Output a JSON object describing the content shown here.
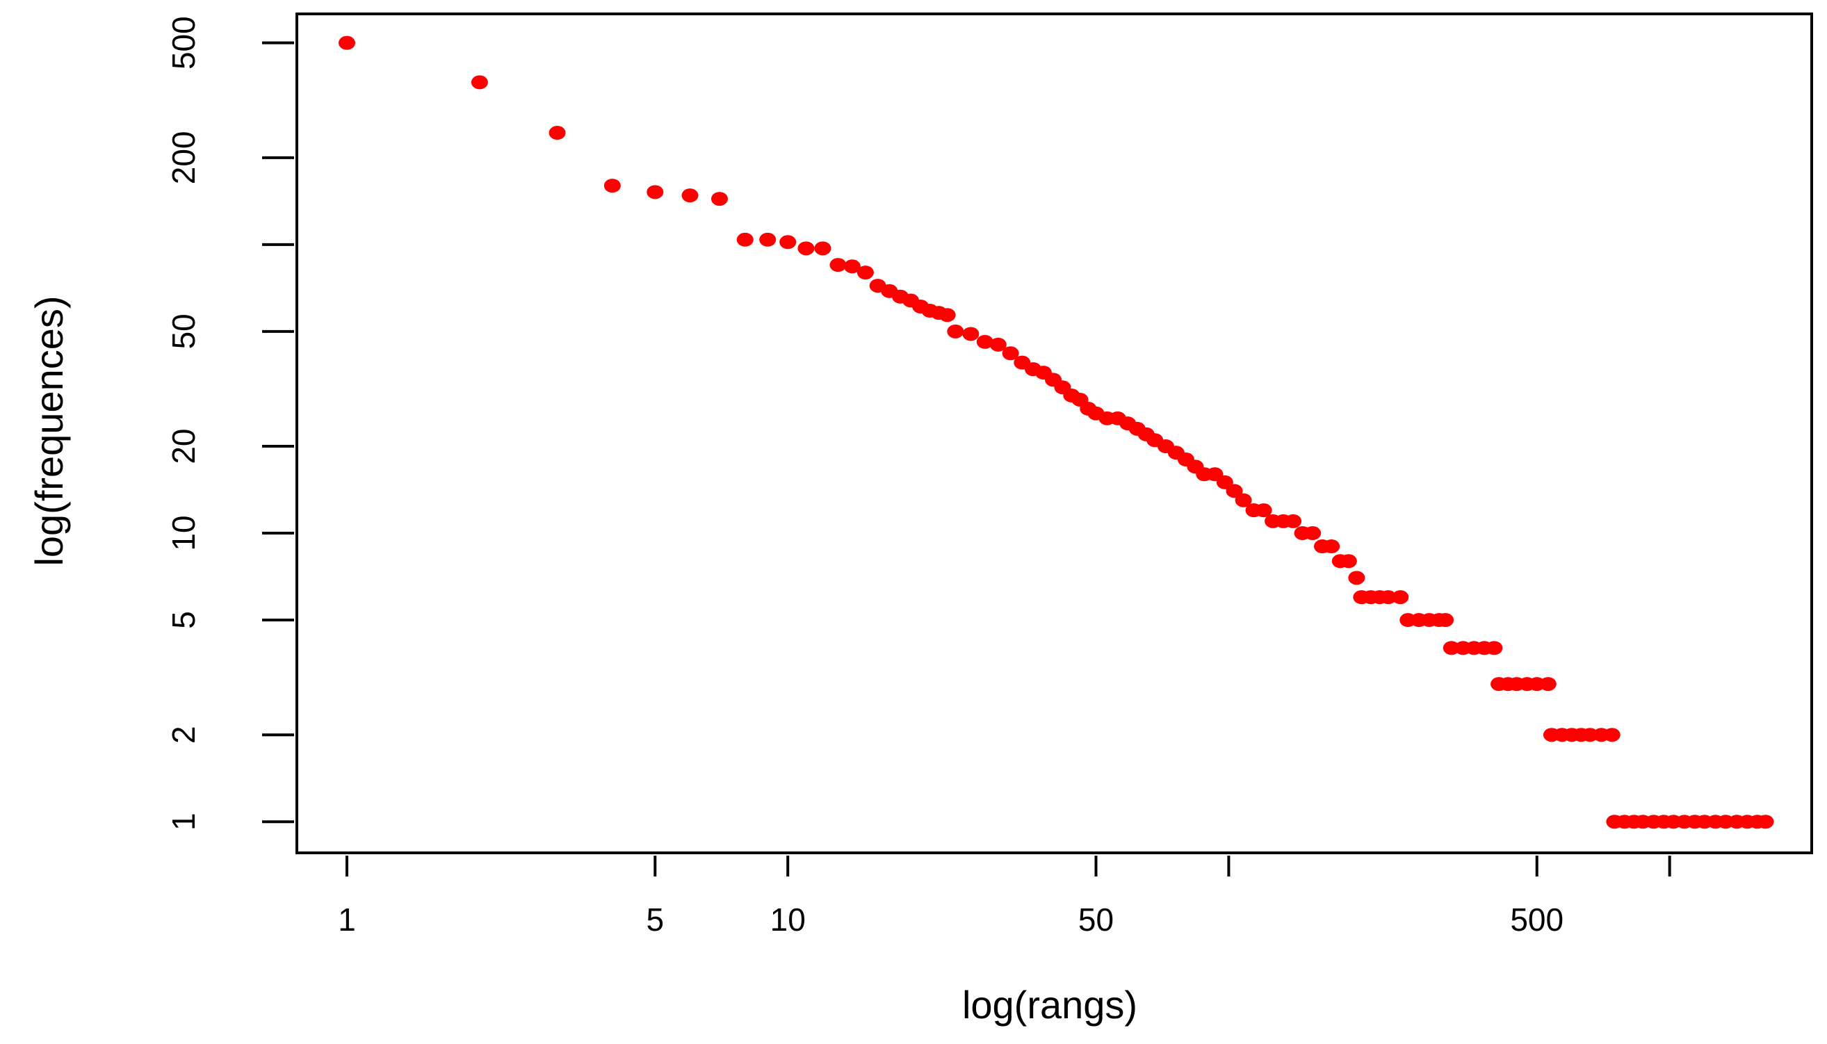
{
  "chart_data": {
    "type": "scatter",
    "x_label": "log(rangs)",
    "y_label": "log(frequences)",
    "color": "#ff0000",
    "xlog": true,
    "ylog": true,
    "xlim": [
      0.77,
      2100
    ],
    "ylim": [
      0.78,
      630
    ],
    "xticks": [
      1,
      5,
      10,
      50,
      {
        "value": 100,
        "label": null
      },
      500,
      {
        "value": 1000,
        "label": null
      }
    ],
    "yticks": [
      1,
      2,
      5,
      10,
      20,
      50,
      {
        "value": 100,
        "label": null
      },
      200,
      500
    ],
    "x": [
      1,
      2,
      3,
      4,
      5,
      6,
      7,
      8,
      9,
      10,
      11,
      12,
      13,
      14,
      15,
      16,
      17,
      18,
      19,
      20,
      21,
      22,
      23,
      24,
      26,
      28,
      30,
      32,
      34,
      36,
      38,
      40,
      42,
      44,
      46,
      48,
      50,
      53,
      56,
      59,
      62,
      65,
      68,
      72,
      76,
      80,
      84,
      88,
      93,
      98,
      103,
      108,
      114,
      120,
      126,
      133,
      140,
      147,
      155,
      163,
      171,
      179,
      187,
      195,
      200,
      210,
      220,
      230,
      245,
      255,
      270,
      285,
      300,
      310,
      320,
      340,
      360,
      380,
      400,
      410,
      430,
      450,
      475,
      500,
      530,
      540,
      570,
      600,
      630,
      660,
      700,
      740,
      750,
      790,
      830,
      870,
      920,
      970,
      1020,
      1080,
      1140,
      1200,
      1270,
      1340,
      1420,
      1500,
      1580,
      1650
    ],
    "values": [
      500,
      365,
      244,
      160,
      152,
      148,
      144,
      104,
      104,
      102,
      97,
      97,
      85,
      84,
      80,
      72,
      69,
      66,
      64,
      61,
      59,
      58,
      57,
      50,
      49,
      46,
      45,
      42,
      39,
      37,
      36,
      34,
      32,
      30,
      29,
      27,
      26,
      25,
      25,
      24,
      23,
      22,
      21,
      20,
      19,
      18,
      17,
      16,
      16,
      15,
      14,
      13,
      12,
      12,
      11,
      11,
      11,
      10,
      10,
      9,
      9,
      8,
      8,
      7,
      6,
      6,
      6,
      6,
      6,
      5,
      5,
      5,
      5,
      5,
      4,
      4,
      4,
      4,
      4,
      3,
      3,
      3,
      3,
      3,
      3,
      2,
      2,
      2,
      2,
      2,
      2,
      2,
      1,
      1,
      1,
      1,
      1,
      1,
      1,
      1,
      1,
      1,
      1,
      1,
      1,
      1,
      1,
      1
    ]
  }
}
